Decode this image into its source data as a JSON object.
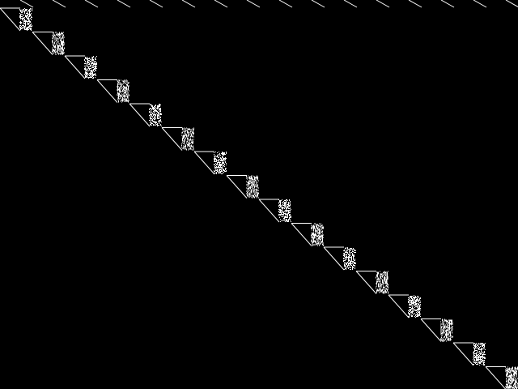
{
  "colors": {
    "background": "#000000",
    "foreground": "#ffffff"
  },
  "pattern": {
    "steps": 16,
    "noise_density": 0.55
  }
}
